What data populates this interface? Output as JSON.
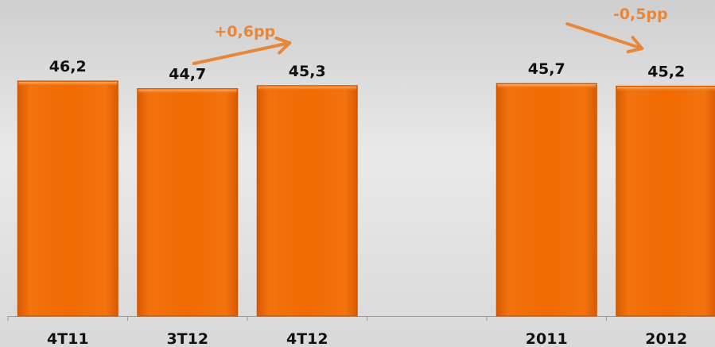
{
  "chart_data": {
    "type": "bar",
    "categories": [
      "4T11",
      "3T12",
      "4T12",
      "",
      "2011",
      "2012"
    ],
    "values": [
      46.2,
      44.7,
      45.3,
      null,
      45.7,
      45.2
    ],
    "value_labels": [
      "46,2",
      "44,7",
      "45,3",
      "",
      "45,7",
      "45,2"
    ],
    "ylim": [
      0,
      46.2
    ],
    "grid": false,
    "bar_color": "#f06a00",
    "annotations": [
      {
        "text": "+0,6pp",
        "direction": "up",
        "color": "#e8873a"
      },
      {
        "text": "-0,5pp",
        "direction": "down",
        "color": "#e8873a"
      }
    ]
  }
}
